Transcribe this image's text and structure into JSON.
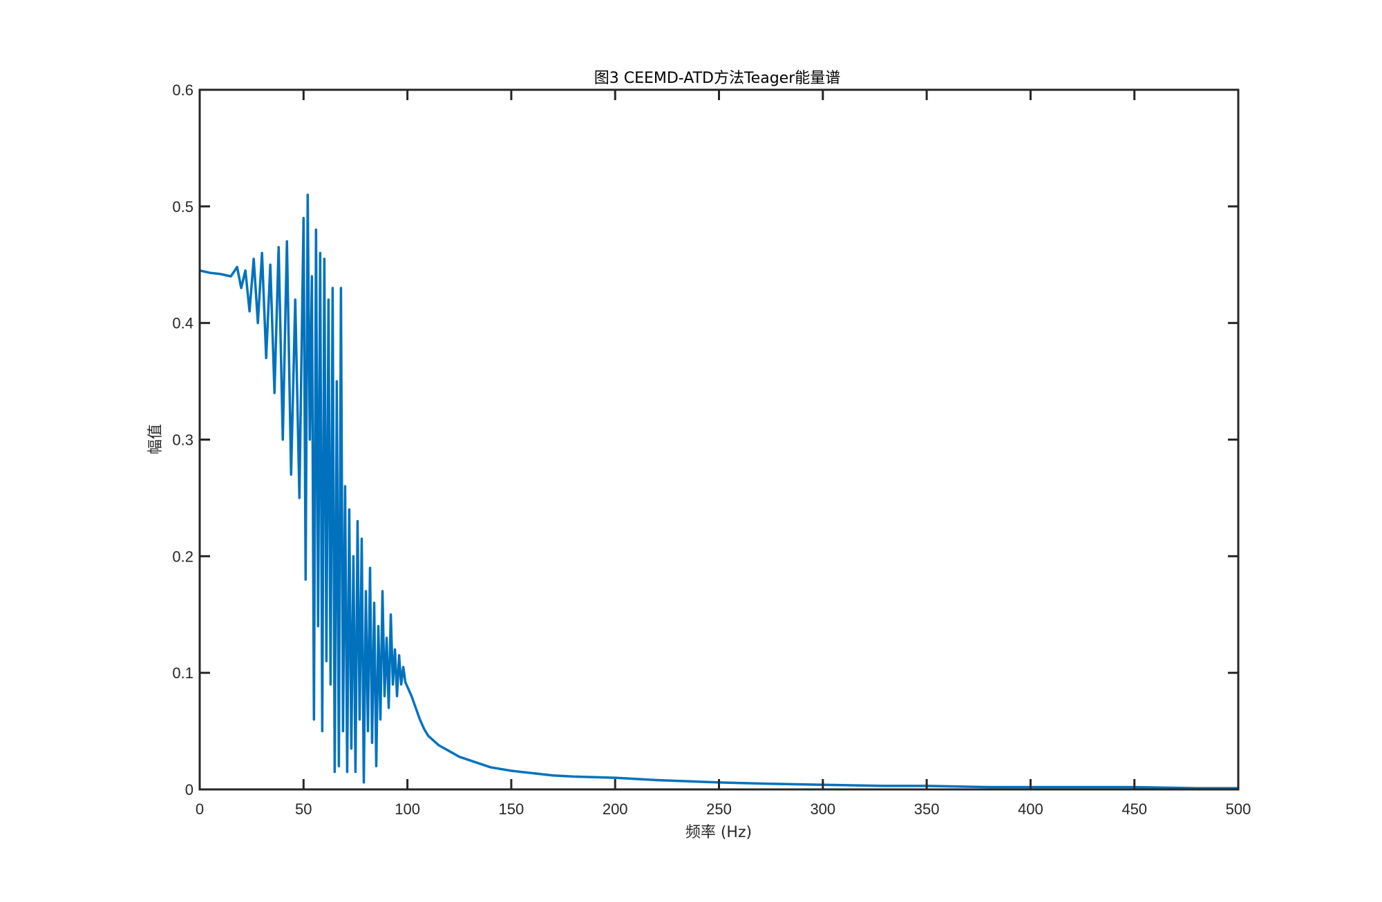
{
  "chart_data": {
    "type": "line",
    "title": "图3 CEEMD-ATD方法Teager能量谱",
    "xlabel": "频率 (Hz)",
    "ylabel": "幅值",
    "xlim": [
      0,
      500
    ],
    "ylim": [
      0,
      0.6
    ],
    "xticks": [
      0,
      50,
      100,
      150,
      200,
      250,
      300,
      350,
      400,
      450,
      500
    ],
    "xtick_labels": [
      "0",
      "50",
      "100",
      "150",
      "200",
      "250",
      "300",
      "350",
      "400",
      "450",
      "500"
    ],
    "yticks": [
      0,
      0.1,
      0.2,
      0.3,
      0.4,
      0.5,
      0.6
    ],
    "ytick_labels": [
      "0",
      "0.1",
      "0.2",
      "0.3",
      "0.4",
      "0.5",
      "0.6"
    ],
    "grid": false,
    "box": true,
    "line_color": "#0072BD",
    "axis_color": "#262626",
    "series": [
      {
        "x": [
          0,
          5,
          10,
          15,
          18,
          20,
          22,
          24,
          26,
          28,
          30,
          32,
          34,
          36,
          38,
          40,
          42,
          44,
          46,
          48,
          50,
          51,
          52,
          53,
          54,
          55,
          56,
          57,
          58,
          59,
          60,
          61,
          62,
          63,
          64,
          65,
          66,
          67,
          68,
          69,
          70,
          71,
          72,
          73,
          74,
          75,
          76,
          77,
          78,
          79,
          80,
          81,
          82,
          83,
          84,
          85,
          86,
          87,
          88,
          89,
          90,
          91,
          92,
          93,
          94,
          95,
          96,
          97,
          98,
          99,
          100,
          102,
          104,
          106,
          108,
          110,
          115,
          120,
          125,
          130,
          140,
          150,
          160,
          170,
          180,
          200,
          220,
          250,
          270,
          300,
          330,
          350,
          380,
          400,
          430,
          450,
          480,
          500
        ],
        "y": [
          0.445,
          0.443,
          0.442,
          0.44,
          0.448,
          0.43,
          0.445,
          0.41,
          0.455,
          0.4,
          0.46,
          0.37,
          0.45,
          0.34,
          0.465,
          0.3,
          0.47,
          0.27,
          0.42,
          0.25,
          0.49,
          0.18,
          0.51,
          0.3,
          0.44,
          0.06,
          0.48,
          0.14,
          0.46,
          0.05,
          0.455,
          0.11,
          0.42,
          0.09,
          0.43,
          0.015,
          0.35,
          0.02,
          0.43,
          0.05,
          0.26,
          0.015,
          0.24,
          0.035,
          0.2,
          0.015,
          0.23,
          0.06,
          0.215,
          0.006,
          0.17,
          0.05,
          0.19,
          0.04,
          0.16,
          0.02,
          0.14,
          0.06,
          0.17,
          0.08,
          0.13,
          0.07,
          0.15,
          0.09,
          0.12,
          0.08,
          0.115,
          0.09,
          0.105,
          0.092,
          0.088,
          0.08,
          0.07,
          0.06,
          0.052,
          0.046,
          0.038,
          0.033,
          0.028,
          0.025,
          0.019,
          0.016,
          0.014,
          0.012,
          0.011,
          0.01,
          0.008,
          0.006,
          0.005,
          0.004,
          0.003,
          0.003,
          0.002,
          0.002,
          0.002,
          0.002,
          0.001,
          0.001
        ]
      }
    ]
  }
}
